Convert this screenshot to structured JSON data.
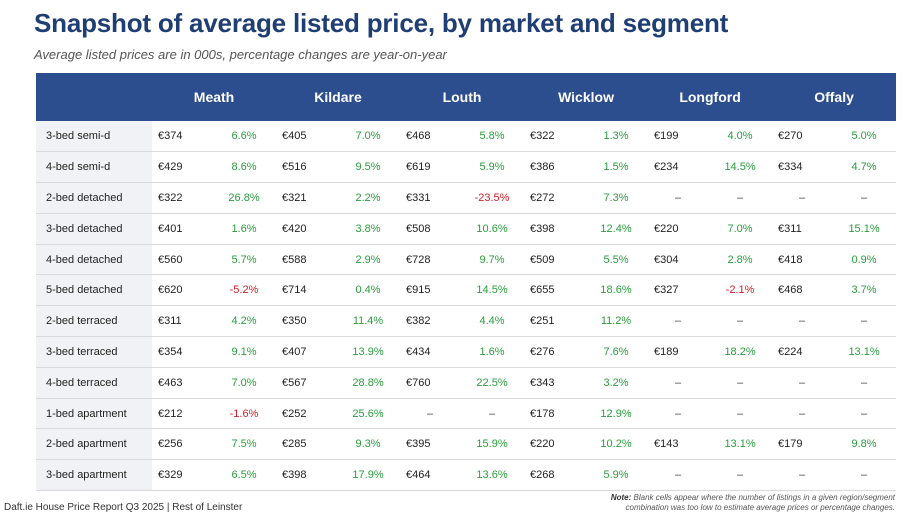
{
  "title": "Snapshot of average listed price, by market and segment",
  "subtitle": "Average listed prices are in 000s, percentage changes are year-on-year",
  "markets": [
    "Meath",
    "Kildare",
    "Louth",
    "Wicklow",
    "Longford",
    "Offaly"
  ],
  "rows": [
    {
      "segment": "3-bed semi-d",
      "cells": [
        [
          "€374",
          "6.6%"
        ],
        [
          "€405",
          "7.0%"
        ],
        [
          "€468",
          "5.8%"
        ],
        [
          "€322",
          "1.3%"
        ],
        [
          "€199",
          "4.0%"
        ],
        [
          "€270",
          "5.0%"
        ]
      ]
    },
    {
      "segment": "4-bed semi-d",
      "cells": [
        [
          "€429",
          "8.6%"
        ],
        [
          "€516",
          "9.5%"
        ],
        [
          "€619",
          "5.9%"
        ],
        [
          "€386",
          "1.5%"
        ],
        [
          "€234",
          "14.5%"
        ],
        [
          "€334",
          "4.7%"
        ]
      ]
    },
    {
      "segment": "2-bed detached",
      "cells": [
        [
          "€322",
          "26.8%"
        ],
        [
          "€321",
          "2.2%"
        ],
        [
          "€331",
          "-23.5%"
        ],
        [
          "€272",
          "7.3%"
        ],
        [
          "–",
          "–"
        ],
        [
          "–",
          "–"
        ]
      ]
    },
    {
      "segment": "3-bed detached",
      "cells": [
        [
          "€401",
          "1.6%"
        ],
        [
          "€420",
          "3.8%"
        ],
        [
          "€508",
          "10.6%"
        ],
        [
          "€398",
          "12.4%"
        ],
        [
          "€220",
          "7.0%"
        ],
        [
          "€311",
          "15.1%"
        ]
      ]
    },
    {
      "segment": "4-bed detached",
      "cells": [
        [
          "€560",
          "5.7%"
        ],
        [
          "€588",
          "2.9%"
        ],
        [
          "€728",
          "9.7%"
        ],
        [
          "€509",
          "5.5%"
        ],
        [
          "€304",
          "2.8%"
        ],
        [
          "€418",
          "0.9%"
        ]
      ]
    },
    {
      "segment": "5-bed detached",
      "cells": [
        [
          "€620",
          "-5.2%"
        ],
        [
          "€714",
          "0.4%"
        ],
        [
          "€915",
          "14.5%"
        ],
        [
          "€655",
          "18.6%"
        ],
        [
          "€327",
          "-2.1%"
        ],
        [
          "€468",
          "3.7%"
        ]
      ]
    },
    {
      "segment": "2-bed terraced",
      "cells": [
        [
          "€311",
          "4.2%"
        ],
        [
          "€350",
          "11.4%"
        ],
        [
          "€382",
          "4.4%"
        ],
        [
          "€251",
          "11.2%"
        ],
        [
          "–",
          "–"
        ],
        [
          "–",
          "–"
        ]
      ]
    },
    {
      "segment": "3-bed terraced",
      "cells": [
        [
          "€354",
          "9.1%"
        ],
        [
          "€407",
          "13.9%"
        ],
        [
          "€434",
          "1.6%"
        ],
        [
          "€276",
          "7.6%"
        ],
        [
          "€189",
          "18.2%"
        ],
        [
          "€224",
          "13.1%"
        ]
      ]
    },
    {
      "segment": "4-bed terraced",
      "cells": [
        [
          "€463",
          "7.0%"
        ],
        [
          "€567",
          "28.8%"
        ],
        [
          "€760",
          "22.5%"
        ],
        [
          "€343",
          "3.2%"
        ],
        [
          "–",
          "–"
        ],
        [
          "–",
          "–"
        ]
      ]
    },
    {
      "segment": "1-bed apartment",
      "cells": [
        [
          "€212",
          "-1.6%"
        ],
        [
          "€252",
          "25.6%"
        ],
        [
          "–",
          "–"
        ],
        [
          "€178",
          "12.9%"
        ],
        [
          "–",
          "–"
        ],
        [
          "–",
          "–"
        ]
      ]
    },
    {
      "segment": "2-bed apartment",
      "cells": [
        [
          "€256",
          "7.5%"
        ],
        [
          "€285",
          "9.3%"
        ],
        [
          "€395",
          "15.9%"
        ],
        [
          "€220",
          "10.2%"
        ],
        [
          "€143",
          "13.1%"
        ],
        [
          "€179",
          "9.8%"
        ]
      ]
    },
    {
      "segment": "3-bed apartment",
      "cells": [
        [
          "€329",
          "6.5%"
        ],
        [
          "€398",
          "17.9%"
        ],
        [
          "€464",
          "13.6%"
        ],
        [
          "€268",
          "5.9%"
        ],
        [
          "–",
          "–"
        ],
        [
          "–",
          "–"
        ]
      ]
    }
  ],
  "footer": {
    "source": "Daft.ie House Price Report Q3 2025 | Rest of Leinster",
    "note_label": "Note:",
    "note_text": "Blank cells appear where the number of listings in a given region/segment combination was too low to estimate average prices or percentage changes."
  },
  "colors": {
    "header_bg": "#2c4e8e",
    "title": "#1f3e74",
    "positive": "#2a9d3c",
    "negative": "#d4202a"
  }
}
